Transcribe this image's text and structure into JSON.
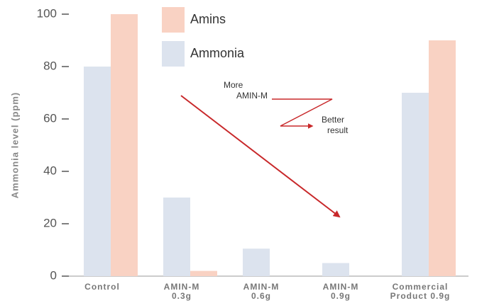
{
  "chart_data": {
    "type": "bar",
    "y_label": "Ammonia level (ppm)",
    "categories": [
      [
        "Control"
      ],
      [
        "AMIN-M",
        "0.3g"
      ],
      [
        "AMIN-M",
        "0.6g"
      ],
      [
        "AMIN-M",
        "0.9g"
      ],
      [
        "Commercial",
        "Product 0.9g"
      ]
    ],
    "series": [
      {
        "name": "Amins",
        "color": "#f9d2c3",
        "values": [
          100,
          2,
          0,
          0,
          90
        ]
      },
      {
        "name": "Ammonia",
        "color": "#dce3ee",
        "values": [
          80,
          30,
          10.5,
          5,
          70
        ]
      }
    ],
    "ylim": [
      0,
      100
    ],
    "yticks": [
      0,
      20,
      40,
      60,
      80,
      100
    ],
    "annotations": [
      [
        "More",
        "AMIN-M"
      ],
      [
        "Better",
        "result"
      ]
    ]
  }
}
